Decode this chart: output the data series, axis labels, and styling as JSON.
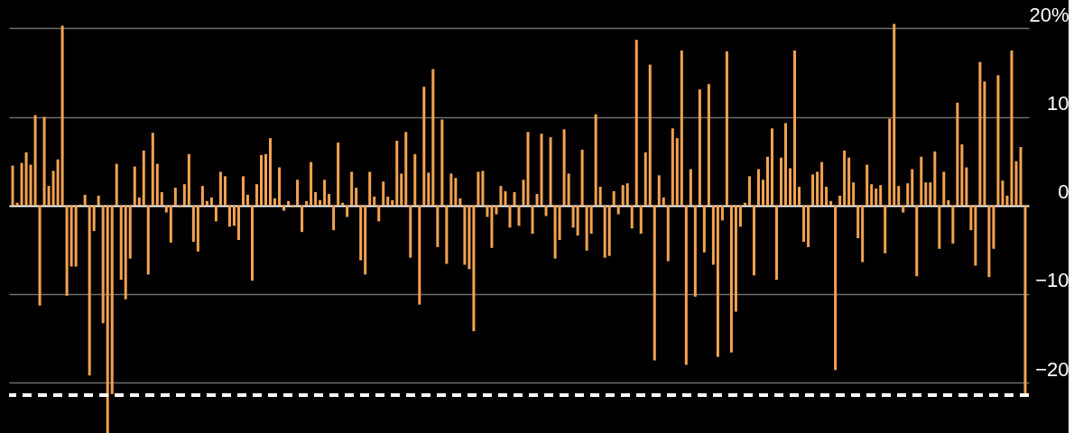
{
  "chart_data": {
    "type": "bar",
    "categories": [
      null,
      null,
      null,
      null,
      null,
      null,
      null,
      null,
      null,
      null,
      null,
      null,
      null,
      null,
      null,
      null,
      null,
      null,
      null,
      null,
      null,
      null,
      null,
      null,
      null,
      null,
      null,
      null,
      null,
      null,
      null,
      null,
      null,
      null,
      null,
      null,
      null,
      null,
      null,
      null,
      null,
      null,
      null,
      null,
      null,
      null,
      null,
      null,
      null,
      null,
      null,
      null,
      null,
      null,
      null,
      null,
      null,
      null,
      null,
      null,
      null,
      null,
      null,
      null,
      null,
      null,
      null,
      null,
      null,
      null,
      null,
      null,
      null,
      null,
      null,
      null,
      null,
      null,
      null,
      null,
      null,
      null,
      null,
      null,
      null,
      null,
      null,
      null,
      null,
      null,
      null,
      null,
      null,
      null,
      null,
      null,
      null,
      null,
      null,
      null,
      null,
      null,
      null,
      null,
      null,
      null,
      null,
      null,
      null,
      null,
      null,
      null,
      null,
      null,
      null,
      null,
      null,
      null,
      null,
      null,
      null,
      null,
      null,
      null,
      null,
      null,
      null,
      null,
      null,
      null,
      null,
      null,
      null,
      null,
      null,
      null,
      null,
      null,
      null,
      null,
      null,
      null,
      null,
      null,
      null,
      null,
      null,
      null,
      null,
      null,
      null,
      null,
      null,
      null,
      null,
      null,
      null,
      null,
      null,
      null,
      null,
      null,
      null,
      null,
      null,
      null,
      null,
      null,
      null,
      null,
      null,
      null,
      null,
      null,
      null,
      null,
      null,
      null,
      null,
      null,
      null,
      null,
      null,
      null,
      null,
      null,
      null,
      null,
      null,
      null,
      null,
      null,
      null,
      null,
      null,
      null,
      null,
      null,
      null,
      null,
      null,
      null,
      null,
      null,
      null,
      null,
      null,
      null,
      null,
      null,
      null,
      null,
      null,
      null,
      null,
      null,
      null,
      null,
      null,
      null,
      null,
      null,
      null,
      null,
      null
    ],
    "values": [
      4.5,
      0.3,
      4.8,
      6.0,
      4.6,
      10.2,
      -11.3,
      10.0,
      2.2,
      3.9,
      5.2,
      20.3,
      -10.2,
      -6.9,
      -6.9,
      0.1,
      1.2,
      -19.2,
      -2.9,
      1.1,
      -13.3,
      -25.7,
      -21.3,
      4.7,
      -8.4,
      -10.6,
      -6.0,
      4.4,
      0.9,
      6.2,
      -7.8,
      8.2,
      4.7,
      1.5,
      -0.8,
      -4.2,
      2.0,
      -0.2,
      2.4,
      5.8,
      -4.1,
      -5.2,
      2.2,
      0.5,
      0.9,
      -1.8,
      3.8,
      3.3,
      -2.4,
      -2.3,
      -3.9,
      3.3,
      1.2,
      -8.5,
      2.4,
      5.7,
      5.8,
      7.6,
      0.8,
      4.3,
      -0.6,
      0.5,
      -0.2,
      2.9,
      -3.0,
      0.5,
      4.9,
      1.5,
      0.6,
      2.9,
      1.3,
      -2.8,
      7.1,
      0.3,
      -1.3,
      3.8,
      2.0,
      -6.2,
      -7.8,
      3.8,
      1.0,
      -1.8,
      2.7,
      1.0,
      0.6,
      7.3,
      3.6,
      8.3,
      -5.9,
      5.8,
      -11.2,
      13.4,
      3.7,
      15.4,
      -4.7,
      9.7,
      -6.6,
      3.6,
      3.1,
      0.8,
      -6.7,
      -7.2,
      -14.2,
      3.8,
      3.9,
      -1.3,
      -4.8,
      -1.0,
      2.2,
      1.6,
      -2.5,
      1.5,
      -2.3,
      2.9,
      8.3,
      -3.2,
      1.3,
      8.1,
      -1.2,
      7.7,
      -6.0,
      -3.9,
      8.6,
      3.6,
      -2.5,
      -3.4,
      6.3,
      -5.1,
      -3.2,
      10.3,
      2.1,
      -5.9,
      -5.7,
      1.6,
      -1.0,
      2.3,
      2.5,
      -2.6,
      18.7,
      -3.2,
      6.0,
      15.9,
      -17.5,
      3.4,
      0.9,
      -6.3,
      8.7,
      7.6,
      17.5,
      -18.0,
      4.1,
      -10.3,
      13.1,
      -5.3,
      13.7,
      -6.7,
      -17.1,
      -1.7,
      17.4,
      -16.6,
      -12.0,
      -2.4,
      0.3,
      3.3,
      -7.9,
      4.1,
      2.9,
      5.5,
      8.7,
      -8.4,
      5.4,
      9.3,
      4.2,
      17.5,
      2.1,
      -4.1,
      -4.7,
      3.5,
      3.8,
      4.9,
      2.1,
      0.5,
      -18.6,
      1.1,
      6.2,
      5.4,
      2.6,
      -3.7,
      -6.4,
      4.6,
      2.4,
      1.9,
      2.3,
      -5.4,
      9.8,
      20.5,
      2.2,
      -0.8,
      2.5,
      4.1,
      -8.0,
      5.5,
      2.6,
      2.6,
      6.1,
      -4.9,
      3.8,
      0.6,
      -4.3,
      11.6,
      6.9,
      4.3,
      -2.8,
      -6.8,
      16.2,
      14.0,
      -8.1,
      -4.9,
      14.7,
      2.8,
      1.1,
      17.5,
      5.0,
      6.6,
      -21.4
    ],
    "color": "#f4a251",
    "ylim": [
      -25.7,
      23.2
    ],
    "yticks": [
      {
        "value": 20,
        "label": "20%"
      },
      10,
      0,
      -10,
      -20
    ],
    "grid": "y",
    "tick_labels": "y",
    "ref_lines": [
      {
        "axis": "y",
        "value": -21.4,
        "color": "#ffffff",
        "line_style": "dashed"
      }
    ]
  }
}
